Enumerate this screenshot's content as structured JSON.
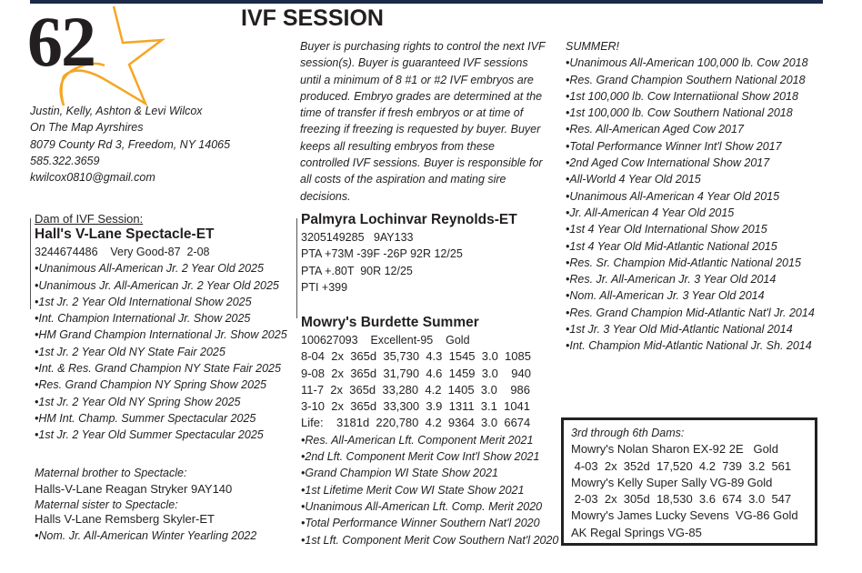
{
  "header": {
    "lot_number": "62",
    "title": "IVF SESSION"
  },
  "contact": [
    "Justin, Kelly, Ashton & Levi Wilcox",
    "On The Map Ayrshires",
    "8079 County Rd 3, Freedom, NY 14065",
    "585.322.3659",
    "kwilcox0810@gmail.com"
  ],
  "terms": "Buyer is purchasing rights to control the next IVF session(s). Buyer is guaranteed IVF sessions until a minimum of 8 #1 or #2 IVF embryos are produced. Embryo grades are determined at the time of transfer if fresh embryos or at time of freezing if freezing is requested by buyer. Buyer keeps all resulting embryos from these controlled IVF sessions.  Buyer is responsible for all costs of the aspiration and mating sire decisions.",
  "dam": {
    "label": "Dam of IVF Session:",
    "name": "Hall's V-Lane Spectacle-ET",
    "info": "3244674486    Very Good-87  2-08",
    "awards": [
      "•Unanimous All-American Jr. 2 Year Old 2025",
      "•Unanimous Jr. All-American Jr. 2 Year Old 2025",
      "•1st Jr. 2 Year Old International Show 2025",
      "•Int. Champion International Jr. Show 2025",
      "•HM Grand Champion International Jr. Show 2025",
      "•1st Jr. 2 Year Old NY State Fair 2025",
      "•Int. & Res. Grand Champion NY State Fair 2025",
      "•Res. Grand Champion NY Spring Show 2025",
      "•1st Jr. 2 Year Old NY Spring Show 2025",
      "•HM Int. Champ. Summer Spectacular 2025",
      "•1st Jr. 2 Year Old Summer Spectacular 2025"
    ]
  },
  "siblings": [
    {
      "label": "Maternal brother to Spectacle:",
      "name": "Halls-V-Lane Reagan Stryker  9AY140"
    },
    {
      "label": "Maternal sister to Spectacle:",
      "name": "Halls V-Lane Remsberg Skyler-ET",
      "note": "•Nom. Jr. All-American Winter Yearling 2022"
    }
  ],
  "sire": {
    "name": "Palmyra Lochinvar Reynolds-ET",
    "lines": [
      "3205149285   9AY133",
      "PTA +73M -39F -26P 92R 12/25",
      "PTA +.80T  90R 12/25",
      "PTI +399"
    ]
  },
  "granddam": {
    "name": "Mowry's Burdette Summer",
    "info": "100627093    Excellent-95    Gold",
    "records": [
      "8-04  2x  365d  35,730  4.3  1545  3.0  1085",
      "9-08  2x  365d  31,790  4.6  1459  3.0    940",
      "11-7  2x  365d  33,280  4.2  1405  3.0    986",
      "3-10  2x  365d  33,300  3.9  1311  3.1  1041",
      "Life:    3181d  220,780  4.2  9364  3.0  6674"
    ],
    "awards": [
      "•Res. All-American Lft. Component Merit 2021",
      "•2nd Lft. Component Merit Cow Int'l Show 2021",
      "•Grand Champion WI State Show 2021",
      "•1st Lifetime Merit Cow WI State Show 2021",
      "•Unanimous All-American Lft. Comp. Merit 2020",
      "•Total Performance Winner Southern Nat'l 2020",
      "•1st Lft. Component Merit Cow Southern Nat'l 2020"
    ]
  },
  "summer": {
    "label": "SUMMER!",
    "awards": [
      "•Unanimous All-American 100,000 lb. Cow 2018",
      "•Res. Grand Champion Southern National 2018",
      "•1st 100,000 lb. Cow Internatiional Show 2018",
      "•1st 100,000 lb. Cow Southern National 2018",
      "•Res. All-American Aged Cow 2017",
      "•Total Performance Winner Int'l Show 2017",
      "•2nd Aged Cow International Show 2017",
      "•All-World 4 Year Old 2015",
      "•Unanimous All-American 4 Year Old 2015",
      "•Jr. All-American 4 Year Old 2015",
      "•1st 4 Year Old International Show 2015",
      "•1st 4 Year Old Mid-Atlantic National 2015",
      "•Res. Sr. Champion Mid-Atlantic National 2015",
      "•Res. Jr. All-American Jr. 3 Year Old 2014",
      "•Nom. All-American Jr. 3 Year Old 2014",
      "•Res. Grand Champion Mid-Atlantic Nat'l Jr. 2014",
      "•1st Jr. 3 Year Old Mid-Atlantic National 2014",
      "•Int. Champion Mid-Atlantic National Jr. Sh. 2014"
    ]
  },
  "dams_box": {
    "label": "3rd through 6th Dams:",
    "lines": [
      "Mowry's Nolan Sharon EX-92 2E   Gold",
      " 4-03  2x  352d  17,520  4.2  739  3.2  561",
      "Mowry's Kelly Super Sally VG-89 Gold",
      " 2-03  2x  305d  18,530  3.6  674  3.0  547",
      "Mowry's James Lucky Sevens  VG-86 Gold",
      "AK Regal Springs VG-85"
    ]
  },
  "colors": {
    "star": "#f5a623",
    "topbar": "#1c2a4a"
  }
}
